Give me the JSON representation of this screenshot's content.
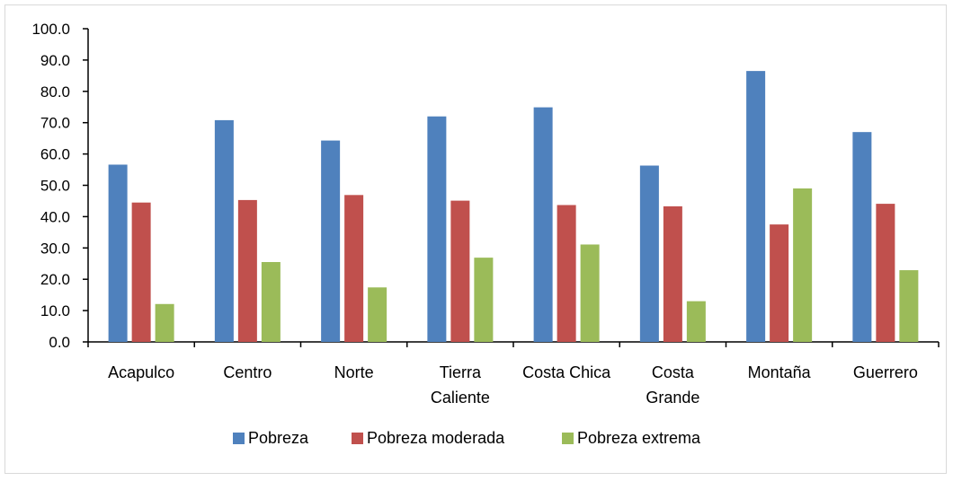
{
  "chart_data": {
    "type": "bar",
    "categories": [
      [
        "Acapulco"
      ],
      [
        "Centro"
      ],
      [
        "Norte"
      ],
      [
        "Tierra",
        "Caliente"
      ],
      [
        "Costa Chica"
      ],
      [
        "Costa",
        "Grande"
      ],
      [
        "Montaña"
      ],
      [
        "Guerrero"
      ]
    ],
    "series": [
      {
        "name": "Pobreza",
        "color": "#4f81bd",
        "values": [
          56.6,
          70.8,
          64.3,
          72.0,
          74.9,
          56.3,
          86.5,
          67.0
        ]
      },
      {
        "name": "Pobreza moderada",
        "color": "#c0504d",
        "values": [
          44.5,
          45.3,
          46.9,
          45.1,
          43.7,
          43.3,
          37.5,
          44.1
        ]
      },
      {
        "name": "Pobreza extrema",
        "color": "#9bbb59",
        "values": [
          12.1,
          25.5,
          17.4,
          26.9,
          31.1,
          13.0,
          49.0,
          22.9
        ]
      }
    ],
    "ylim": [
      0,
      100
    ],
    "yticks": [
      "0.0",
      "10.0",
      "20.0",
      "30.0",
      "40.0",
      "50.0",
      "60.0",
      "70.0",
      "80.0",
      "90.0",
      "100.0"
    ],
    "grid": false,
    "legend_position": "bottom"
  }
}
